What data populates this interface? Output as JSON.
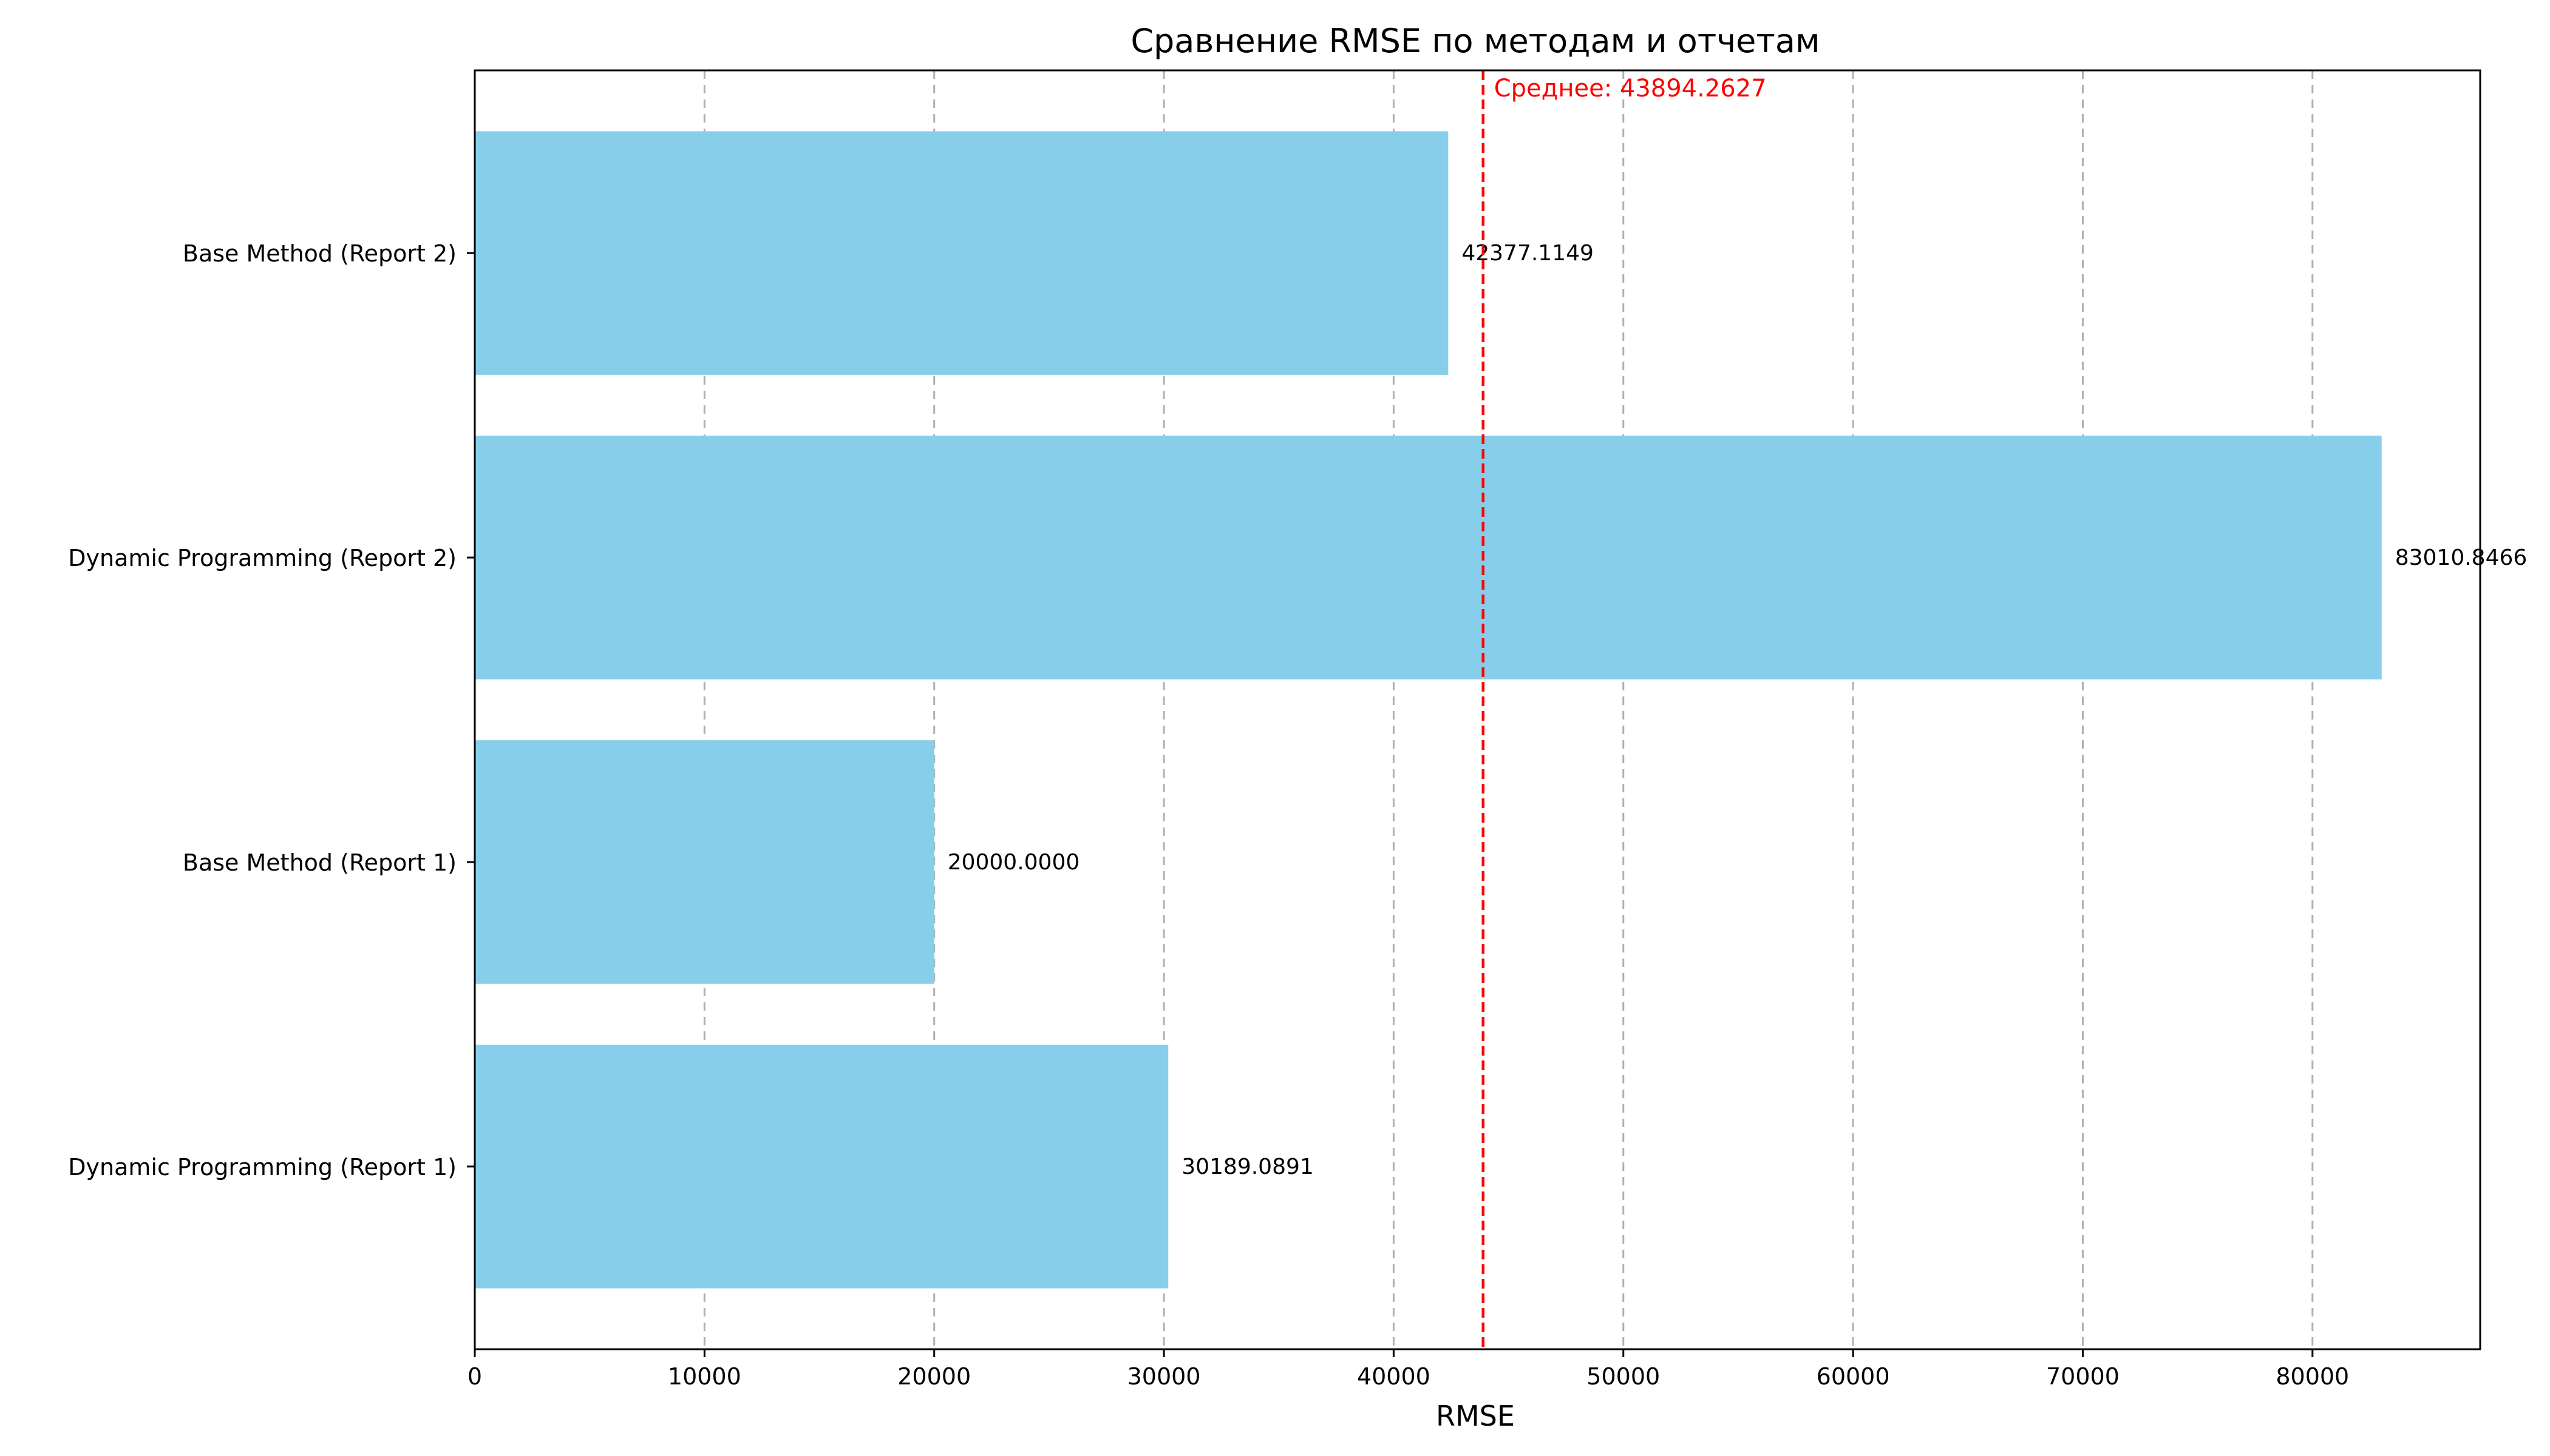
{
  "chart_data": {
    "type": "bar",
    "orientation": "horizontal",
    "title": "Сравнение RMSE по методам и отчетам",
    "xlabel": "RMSE",
    "ylabel": "",
    "xlim": [
      0,
      87300
    ],
    "xticks": [
      0,
      10000,
      20000,
      30000,
      40000,
      50000,
      60000,
      70000,
      80000
    ],
    "grid": "x-dashed",
    "bar_color": "#87ceeb",
    "categories": [
      "Dynamic Programming (Report 1)",
      "Base Method (Report 1)",
      "Dynamic Programming (Report 2)",
      "Base Method (Report 2)"
    ],
    "values": [
      30189.0891,
      20000.0,
      83010.8466,
      42377.1149
    ],
    "value_labels": [
      "30189.0891",
      "20000.0000",
      "83010.8466",
      "42377.1149"
    ],
    "mean": {
      "value": 43894.2627,
      "label": "Среднее: 43894.2627",
      "color": "#ff0000"
    }
  }
}
